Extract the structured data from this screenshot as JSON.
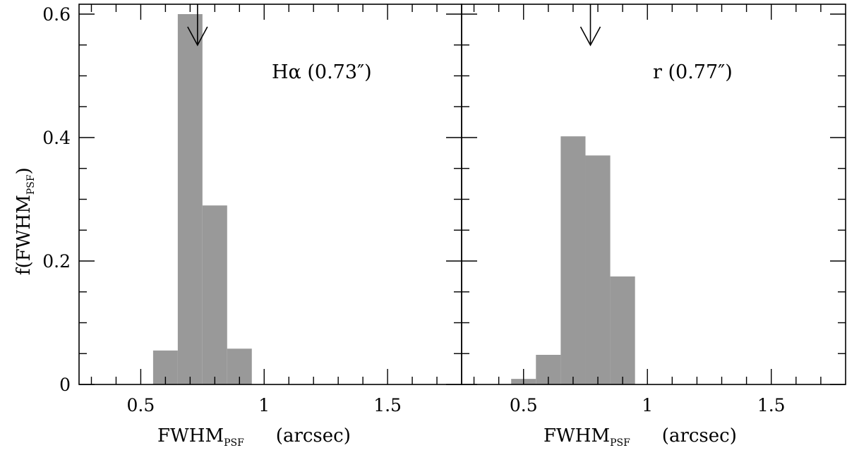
{
  "chart_data": [
    {
      "type": "bar",
      "panel_label": "Hα (0.73″)",
      "bin_edges": [
        0.55,
        0.65,
        0.75,
        0.85,
        0.95
      ],
      "values": [
        0.055,
        0.6,
        0.29,
        0.058
      ],
      "marker_x": 0.73,
      "xlabel_main": "FWHM",
      "xlabel_sub": "PSF",
      "xlabel_unit": "(arcsec)",
      "ylabel_prefix": "f(FWHM",
      "ylabel_sub": "PSF",
      "ylabel_suffix": ")",
      "xlim": [
        0.25,
        1.8
      ],
      "ylim": [
        0,
        0.6
      ],
      "x_ticks": [
        "0.5",
        "1",
        "1.5"
      ],
      "y_ticks": [
        "0",
        "0.2",
        "0.4",
        "0.6"
      ],
      "bar_color": "#999999"
    },
    {
      "type": "bar",
      "panel_label": "r (0.77″)",
      "bin_edges": [
        0.45,
        0.55,
        0.65,
        0.75,
        0.85,
        0.95
      ],
      "values": [
        0.009,
        0.048,
        0.402,
        0.371,
        0.175
      ],
      "marker_x": 0.77,
      "xlabel_main": "FWHM",
      "xlabel_sub": "PSF",
      "xlabel_unit": "(arcsec)",
      "xlim": [
        0.25,
        1.8
      ],
      "ylim": [
        0,
        0.6
      ],
      "x_ticks": [
        "0.5",
        "1",
        "1.5"
      ],
      "bar_color": "#999999"
    }
  ]
}
